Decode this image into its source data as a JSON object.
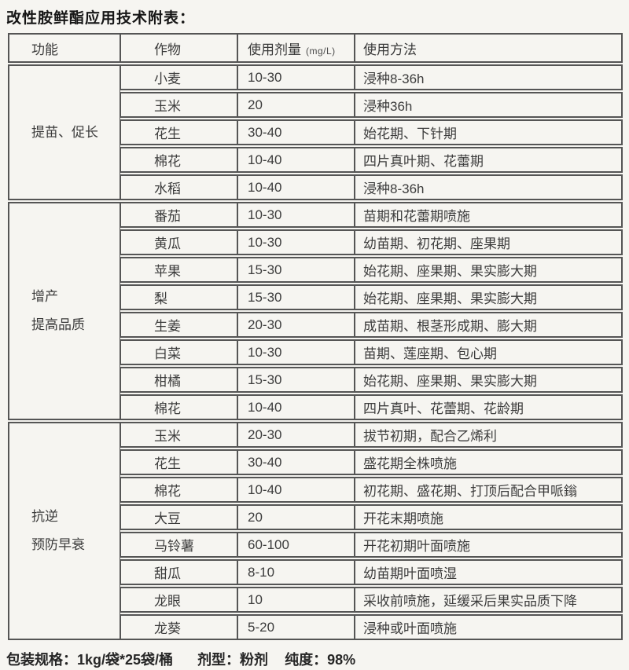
{
  "title": "改性胺鲜酯应用技术附表：",
  "table": {
    "headers": {
      "function": "功能",
      "crop": "作物",
      "dose": "使用剂量",
      "dose_unit": "(mg/L)",
      "method": "使用方法"
    },
    "sections": [
      {
        "function_lines": [
          "提苗、促长"
        ],
        "rows": [
          {
            "crop": "小麦",
            "dose": "10-30",
            "method": "浸种8-36h"
          },
          {
            "crop": "玉米",
            "dose": "20",
            "method": "浸种36h"
          },
          {
            "crop": "花生",
            "dose": "30-40",
            "method": "始花期、下针期"
          },
          {
            "crop": "棉花",
            "dose": "10-40",
            "method": "四片真叶期、花蕾期"
          },
          {
            "crop": "水稻",
            "dose": "10-40",
            "method": "浸种8-36h"
          }
        ]
      },
      {
        "function_lines": [
          "增产",
          "提高品质"
        ],
        "rows": [
          {
            "crop": "番茄",
            "dose": "10-30",
            "method": "苗期和花蕾期喷施"
          },
          {
            "crop": "黄瓜",
            "dose": "10-30",
            "method": "幼苗期、初花期、座果期"
          },
          {
            "crop": "苹果",
            "dose": "15-30",
            "method": "始花期、座果期、果实膨大期"
          },
          {
            "crop": "梨",
            "dose": "15-30",
            "method": "始花期、座果期、果实膨大期"
          },
          {
            "crop": "生姜",
            "dose": "20-30",
            "method": "成苗期、根茎形成期、膨大期"
          },
          {
            "crop": "白菜",
            "dose": "10-30",
            "method": "苗期、莲座期、包心期"
          },
          {
            "crop": "柑橘",
            "dose": "15-30",
            "method": "始花期、座果期、果实膨大期"
          },
          {
            "crop": "棉花",
            "dose": "10-40",
            "method": "四片真叶、花蕾期、花龄期"
          }
        ]
      },
      {
        "function_lines": [
          "抗逆",
          "预防早衰"
        ],
        "rows": [
          {
            "crop": "玉米",
            "dose": "20-30",
            "method": "拔节初期，配合乙烯利"
          },
          {
            "crop": "花生",
            "dose": "30-40",
            "method": "盛花期全株喷施"
          },
          {
            "crop": "棉花",
            "dose": "10-40",
            "method": "初花期、盛花期、打顶后配合甲哌鎓"
          },
          {
            "crop": "大豆",
            "dose": "20",
            "method": "开花末期喷施"
          },
          {
            "crop": "马铃薯",
            "dose": "60-100",
            "method": "开花初期叶面喷施"
          },
          {
            "crop": "甜瓜",
            "dose": "8-10",
            "method": "幼苗期叶面喷湿"
          },
          {
            "crop": "龙眼",
            "dose": "10",
            "method": "采收前喷施，延缓采后果实品质下降"
          },
          {
            "crop": "龙葵",
            "dose": "5-20",
            "method": "浸种或叶面喷施"
          }
        ]
      }
    ]
  },
  "footer": {
    "packaging": "包装规格：1kg/袋*25袋/桶",
    "formulation": "剂型：粉剂",
    "purity": "纯度：98%"
  },
  "colors": {
    "background": "#f6f5f1",
    "border": "#555555",
    "text": "#3c3c3c",
    "title": "#161616"
  }
}
